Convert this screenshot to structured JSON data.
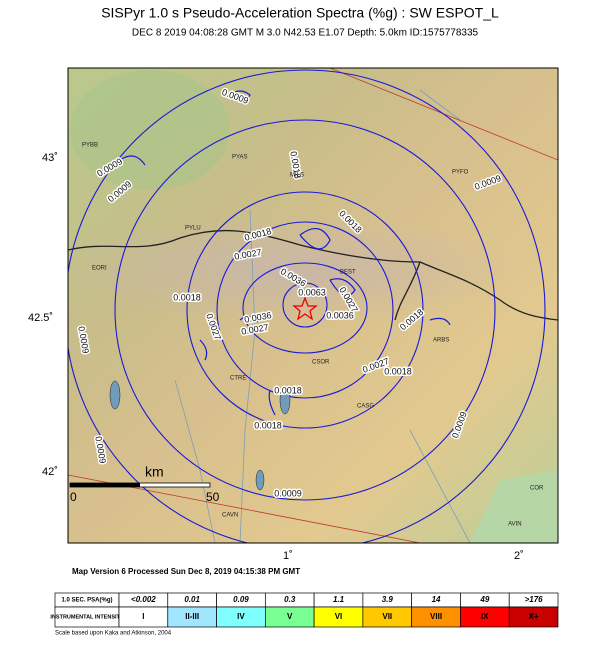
{
  "header": {
    "title": "SISPyr 1.0 s Pseudo-Acceleration Spectra (%g) : SW ESPOT_L",
    "subtitle": "DEC 8 2019 04:08:28  GMT   M 3.0    N42.53 E1.07    Depth: 5.0km   ID:1575778335"
  },
  "map": {
    "lat_labels": [
      "43˚",
      "42.5˚",
      "42˚"
    ],
    "lon_labels": [
      "1˚",
      "2˚"
    ],
    "contour_labels": [
      "0.0009",
      "0.0009",
      "0.0009",
      "0.0018",
      "0.0027",
      "0.0018",
      "0.0009",
      "0.0027",
      "0.0036",
      "0.0027",
      "0.0063",
      "0.0036",
      "0.0027",
      "0.0018",
      "0.0027",
      "0.0018",
      "0.0018",
      "0.0018",
      "0.0009",
      "0.0009",
      "0.0009",
      "0.0009",
      "0.0018",
      "0.0018",
      "0.0036"
    ],
    "station_labels": [
      "PYBB",
      "PYAS",
      "MILS",
      "PYFO",
      "PYLU",
      "EORI",
      "CSOR",
      "CTRE",
      "ARBS",
      "CAVN",
      "COR",
      "AVIN",
      "BEST",
      "CASG"
    ],
    "scale": {
      "unit": "km",
      "ticks": [
        "0",
        "50"
      ]
    }
  },
  "footer": {
    "version": "Map Version 6 Processed Sun Dec  8, 2019 04:15:38 PM GMT",
    "note": "Scale based upon Kaka and Atkinson, 2004"
  },
  "legend": {
    "rows": [
      {
        "header": "1.0 SEC. PSA(%g)",
        "cells": [
          "<0.002",
          "0.01",
          "0.09",
          "0.3",
          "1.1",
          "3.9",
          "14",
          "49",
          ">176"
        ]
      },
      {
        "header": "INSTRUMENTAL INTENSITY",
        "cells": [
          "I",
          "II-III",
          "IV",
          "V",
          "VI",
          "VII",
          "VIII",
          "IX",
          "X+"
        ]
      }
    ]
  }
}
